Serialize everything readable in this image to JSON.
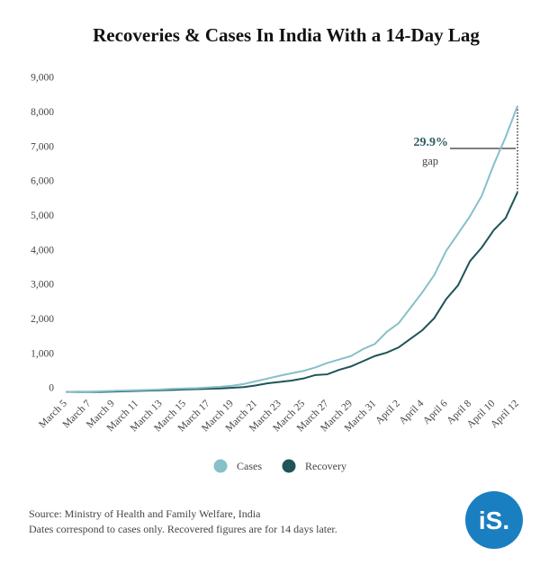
{
  "chart_data": {
    "type": "line",
    "title": "Recoveries & Cases In India With a 14-Day Lag",
    "categories": [
      "March 5",
      null,
      "March 7",
      null,
      "March 9",
      null,
      "March 11",
      null,
      "March 13",
      null,
      "March 15",
      null,
      "March 17",
      null,
      "March 19",
      null,
      "March 21",
      null,
      "March 23",
      null,
      "March 25",
      null,
      "March 27",
      null,
      "March 29",
      null,
      "March 31",
      null,
      "April 2",
      null,
      "April 4",
      null,
      "April 6",
      null,
      "April 8",
      null,
      "April 10",
      null,
      "April 12"
    ],
    "series": [
      {
        "name": "Cases",
        "color": "#86c0c9",
        "values": [
          10,
          20,
          20,
          30,
          40,
          50,
          60,
          70,
          80,
          100,
          110,
          120,
          140,
          160,
          190,
          240,
          320,
          400,
          480,
          550,
          620,
          720,
          850,
          950,
          1050,
          1250,
          1400,
          1750,
          2000,
          2450,
          2900,
          3400,
          4100,
          4600,
          5100,
          5700,
          6600,
          7400,
          8300
        ]
      },
      {
        "name": "Recovery",
        "color": "#1f5458",
        "values": [
          10,
          10,
          10,
          10,
          20,
          30,
          40,
          50,
          60,
          70,
          80,
          90,
          100,
          110,
          130,
          150,
          200,
          260,
          300,
          340,
          400,
          500,
          520,
          650,
          750,
          900,
          1050,
          1150,
          1300,
          1550,
          1800,
          2150,
          2700,
          3100,
          3800,
          4200,
          4700,
          5050,
          5800
        ]
      }
    ],
    "ylim": [
      0,
      9000
    ],
    "yticks": [
      0,
      {
        "value": 1000,
        "label": "1,000"
      },
      {
        "value": 2000,
        "label": "2,000"
      },
      {
        "value": 3000,
        "label": "3,000"
      },
      {
        "value": 4000,
        "label": "4,000"
      },
      {
        "value": 5000,
        "label": "5,000"
      },
      {
        "value": 6000,
        "label": "6,000"
      },
      {
        "value": 7000,
        "label": "7,000"
      },
      {
        "value": 8000,
        "label": "8,000"
      },
      {
        "value": 9000,
        "label": "9,000"
      }
    ],
    "grid": false,
    "legend": "bottom",
    "annotations": [
      "29.9%",
      "gap"
    ],
    "source": [
      "Source: Ministry of Health and Family Welfare, India",
      "Dates correspond to cases only. Recovered figures are for 14 days later."
    ],
    "logo": "iS."
  }
}
